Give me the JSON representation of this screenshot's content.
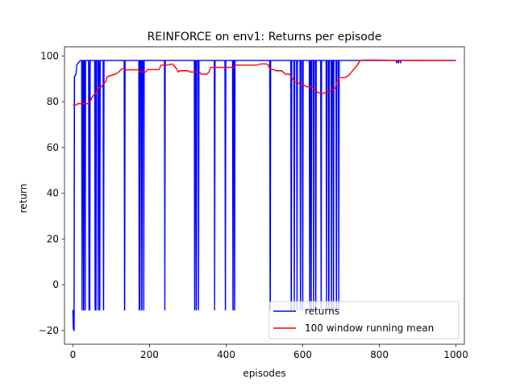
{
  "chart_data": {
    "type": "line",
    "title": "REINFORCE on env1: Returns per episode",
    "xlabel": "episodes",
    "ylabel": "return",
    "xlim": [
      -22,
      1022
    ],
    "ylim": [
      -26,
      104
    ],
    "x_ticks": [
      0,
      200,
      400,
      600,
      800,
      1000
    ],
    "y_ticks": [
      -20,
      0,
      20,
      40,
      60,
      80,
      100
    ],
    "grid": false,
    "legend_position": "lower-right",
    "series": [
      {
        "name": "returns",
        "color": "#0000ff",
        "baseline": 98,
        "start_points": [
          [
            0,
            -11
          ],
          [
            1,
            -19
          ],
          [
            3,
            -20
          ],
          [
            4,
            91
          ],
          [
            8,
            92
          ],
          [
            10,
            96
          ],
          [
            14,
            97
          ],
          [
            20,
            98
          ]
        ],
        "dips": [
          [
            24,
            -11
          ],
          [
            28,
            -11
          ],
          [
            32,
            -11
          ],
          [
            42,
            -11
          ],
          [
            44,
            -11
          ],
          [
            58,
            -11
          ],
          [
            60,
            -11
          ],
          [
            66,
            -11
          ],
          [
            70,
            -11
          ],
          [
            80,
            -11
          ],
          [
            135,
            -11
          ],
          [
            173,
            -11
          ],
          [
            175,
            -11
          ],
          [
            180,
            -11
          ],
          [
            185,
            -11
          ],
          [
            240,
            -11
          ],
          [
            318,
            -11
          ],
          [
            322,
            -11
          ],
          [
            328,
            -11
          ],
          [
            370,
            -11
          ],
          [
            398,
            -11
          ],
          [
            418,
            -11
          ],
          [
            422,
            -11
          ],
          [
            515,
            -11
          ],
          [
            570,
            -11
          ],
          [
            578,
            -11
          ],
          [
            585,
            -11
          ],
          [
            594,
            -11
          ],
          [
            600,
            -11
          ],
          [
            618,
            -11
          ],
          [
            622,
            -11
          ],
          [
            628,
            -11
          ],
          [
            634,
            -11
          ],
          [
            648,
            -11
          ],
          [
            662,
            -11
          ],
          [
            668,
            -11
          ],
          [
            675,
            -11
          ],
          [
            680,
            -11
          ],
          [
            688,
            -11
          ],
          [
            694,
            -11
          ]
        ],
        "minor_dips": [
          [
            845,
            97
          ],
          [
            850,
            97
          ],
          [
            855,
            97
          ]
        ]
      },
      {
        "name": "100 window running mean",
        "color": "#ff0000",
        "points": [
          [
            0,
            78.6
          ],
          [
            10,
            78.6
          ],
          [
            12,
            79.1
          ],
          [
            40,
            79.1
          ],
          [
            45,
            80
          ],
          [
            50,
            82
          ],
          [
            55,
            83
          ],
          [
            60,
            83.5
          ],
          [
            65,
            86
          ],
          [
            75,
            86.5
          ],
          [
            80,
            88
          ],
          [
            85,
            88.5
          ],
          [
            90,
            91
          ],
          [
            100,
            91.5
          ],
          [
            110,
            92
          ],
          [
            120,
            93
          ],
          [
            125,
            94
          ],
          [
            130,
            94.5
          ],
          [
            140,
            93.9
          ],
          [
            170,
            93.9
          ],
          [
            175,
            93
          ],
          [
            190,
            93
          ],
          [
            195,
            94
          ],
          [
            225,
            94
          ],
          [
            230,
            96
          ],
          [
            245,
            96
          ],
          [
            260,
            96.5
          ],
          [
            270,
            94.5
          ],
          [
            275,
            93
          ],
          [
            280,
            93.5
          ],
          [
            300,
            93.5
          ],
          [
            305,
            93
          ],
          [
            320,
            93
          ],
          [
            330,
            93
          ],
          [
            335,
            92
          ],
          [
            350,
            92
          ],
          [
            355,
            93
          ],
          [
            360,
            95
          ],
          [
            420,
            95
          ],
          [
            425,
            96
          ],
          [
            480,
            96
          ],
          [
            490,
            96.5
          ],
          [
            505,
            96.5
          ],
          [
            510,
            96
          ],
          [
            515,
            94
          ],
          [
            525,
            94
          ],
          [
            530,
            93.5
          ],
          [
            545,
            93.5
          ],
          [
            555,
            92
          ],
          [
            565,
            92
          ],
          [
            570,
            91
          ],
          [
            578,
            89
          ],
          [
            590,
            88
          ],
          [
            600,
            87.5
          ],
          [
            610,
            86.5
          ],
          [
            625,
            86.5
          ],
          [
            630,
            85.5
          ],
          [
            640,
            84
          ],
          [
            650,
            83.5
          ],
          [
            660,
            84
          ],
          [
            670,
            84.5
          ],
          [
            685,
            86
          ],
          [
            690,
            89
          ],
          [
            695,
            90.5
          ],
          [
            710,
            90.5
          ],
          [
            720,
            91.5
          ],
          [
            730,
            93.5
          ],
          [
            740,
            95.5
          ],
          [
            750,
            98
          ],
          [
            760,
            98.2
          ],
          [
            800,
            98.2
          ],
          [
            850,
            98
          ],
          [
            900,
            98.1
          ],
          [
            950,
            98
          ],
          [
            1000,
            98.1
          ]
        ]
      }
    ]
  }
}
